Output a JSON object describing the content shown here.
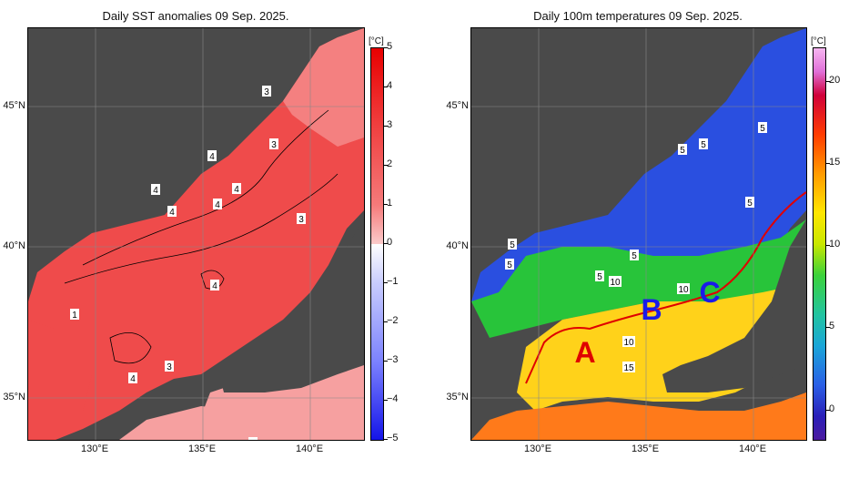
{
  "panel_left": {
    "title": "Daily SST anomalies 09 Sep. 2025.",
    "unit": "[°C]",
    "colorbar_ticks": [
      "5",
      "4",
      "3",
      "2",
      "1",
      "0",
      "−1",
      "−2",
      "−3",
      "−4",
      "−5"
    ],
    "contour_labels": [
      "3",
      "3",
      "4",
      "3",
      "4",
      "4",
      "4",
      "3",
      "4",
      "4",
      "3",
      "4",
      "2",
      "1"
    ]
  },
  "panel_right": {
    "title": "Daily 100m temperatures 09 Sep. 2025.",
    "unit": "[°C]",
    "colorbar_ticks": [
      "20",
      "15",
      "10",
      "5",
      "0"
    ],
    "contour_labels": [
      "5",
      "5",
      "5",
      "5",
      "5",
      "5",
      "5",
      "10",
      "10",
      "10",
      "15"
    ],
    "region_labels": [
      "A",
      "B",
      "C"
    ]
  },
  "axes": {
    "lat_labels": [
      "45°N",
      "40°N",
      "35°N"
    ],
    "lon_labels": [
      "130°E",
      "135°E",
      "140°E"
    ]
  },
  "colors": {
    "land": "#4a4a4a",
    "anomaly_warm": "#ef4b4b",
    "anomaly_light": "#f6a0a0",
    "temp_cold": "#2a4fe0",
    "temp_mid": "#28c43a",
    "temp_warm": "#ffd21a",
    "front_line": "#e00000",
    "region_label_A": "#e00000",
    "region_label_BC": "#1a1ae8"
  }
}
